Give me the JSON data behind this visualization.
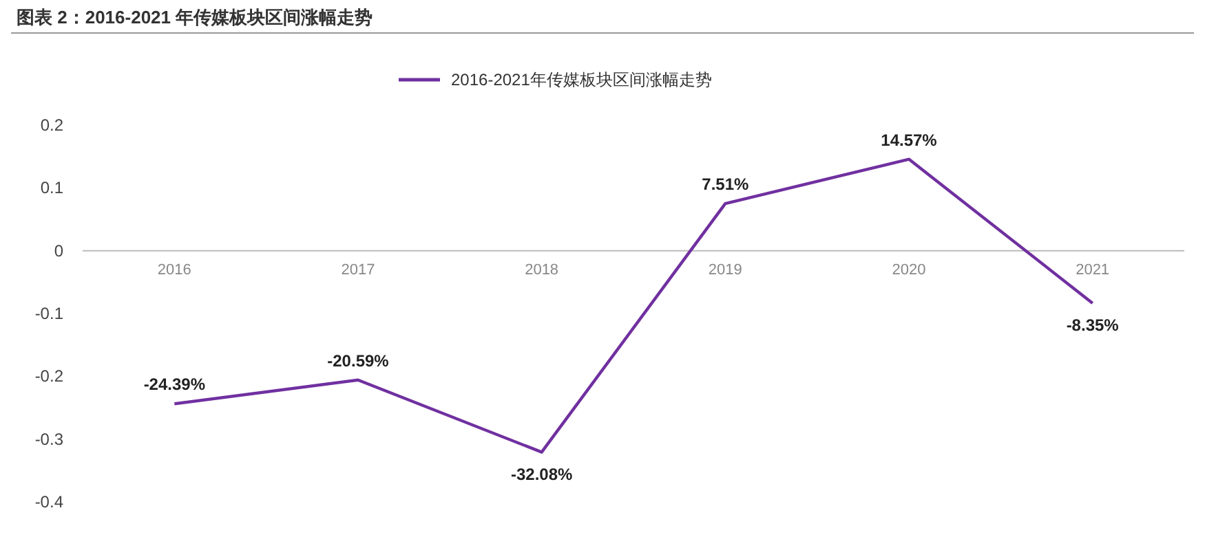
{
  "chart_data": {
    "type": "line",
    "title": "图表 2：2016-2021 年传媒板块区间涨幅走势",
    "categories": [
      "2016",
      "2017",
      "2018",
      "2019",
      "2020",
      "2021"
    ],
    "series": [
      {
        "name": "2016-2021年传媒板块区间涨幅走势",
        "color": "#7030a0",
        "values": [
          -0.2439,
          -0.2059,
          -0.3208,
          0.0751,
          0.1457,
          -0.0835
        ],
        "value_labels": [
          "-24.39%",
          "-20.59%",
          "-32.08%",
          "7.51%",
          "14.57%",
          "-8.35%"
        ]
      }
    ],
    "ylim": [
      -0.4,
      0.2
    ],
    "yticks": [
      -0.4,
      -0.3,
      -0.2,
      -0.1,
      0,
      0.1,
      0.2
    ],
    "grid": false,
    "legend": "top",
    "marker": "none",
    "line_style": "solid"
  }
}
